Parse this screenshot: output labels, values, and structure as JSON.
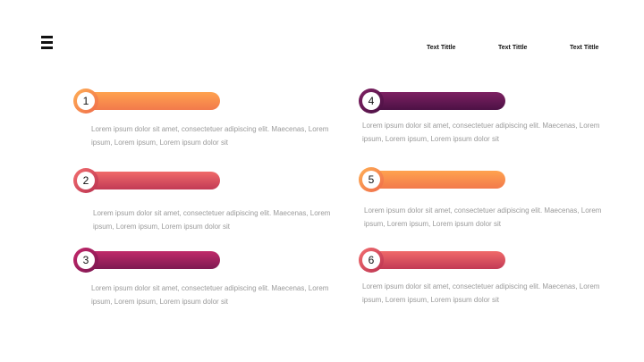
{
  "header": {
    "menu_icon": "hamburger-menu-icon",
    "nav": [
      {
        "label": "Text Tittle"
      },
      {
        "label": "Text Tittle"
      },
      {
        "label": "Text Tittle"
      }
    ]
  },
  "items": [
    {
      "number": "1",
      "text": "Lorem ipsum dolor sit amet, consectetuer adipiscing elit. Maecenas, Lorem ipsum, Lorem ipsum, Lorem ipsum dolor sit",
      "color": "#f5894c"
    },
    {
      "number": "2",
      "text": "Lorem ipsum dolor sit amet, consectetuer adipiscing elit. Maecenas, Lorem ipsum, Lorem ipsum, Lorem ipsum dolor sit",
      "color": "#dc4d5d"
    },
    {
      "number": "3",
      "text": "Lorem ipsum dolor sit amet, consectetuer adipiscing elit. Maecenas, Lorem ipsum, Lorem ipsum, Lorem ipsum dolor sit",
      "color": "#9e215e"
    },
    {
      "number": "4",
      "text": "Lorem ipsum dolor sit amet, consectetuer adipiscing elit. Maecenas, Lorem ipsum, Lorem ipsum, Lorem ipsum dolor sit",
      "color": "#641852"
    },
    {
      "number": "5",
      "text": "Lorem ipsum dolor sit amet, consectetuer adipiscing elit. Maecenas, Lorem ipsum, Lorem ipsum, Lorem ipsum dolor sit",
      "color": "#f5894c"
    },
    {
      "number": "6",
      "text": "Lorem ipsum dolor sit amet, consectetuer adipiscing elit. Maecenas, Lorem ipsum, Lorem ipsum, Lorem ipsum dolor sit",
      "color": "#dc4d5d"
    }
  ]
}
